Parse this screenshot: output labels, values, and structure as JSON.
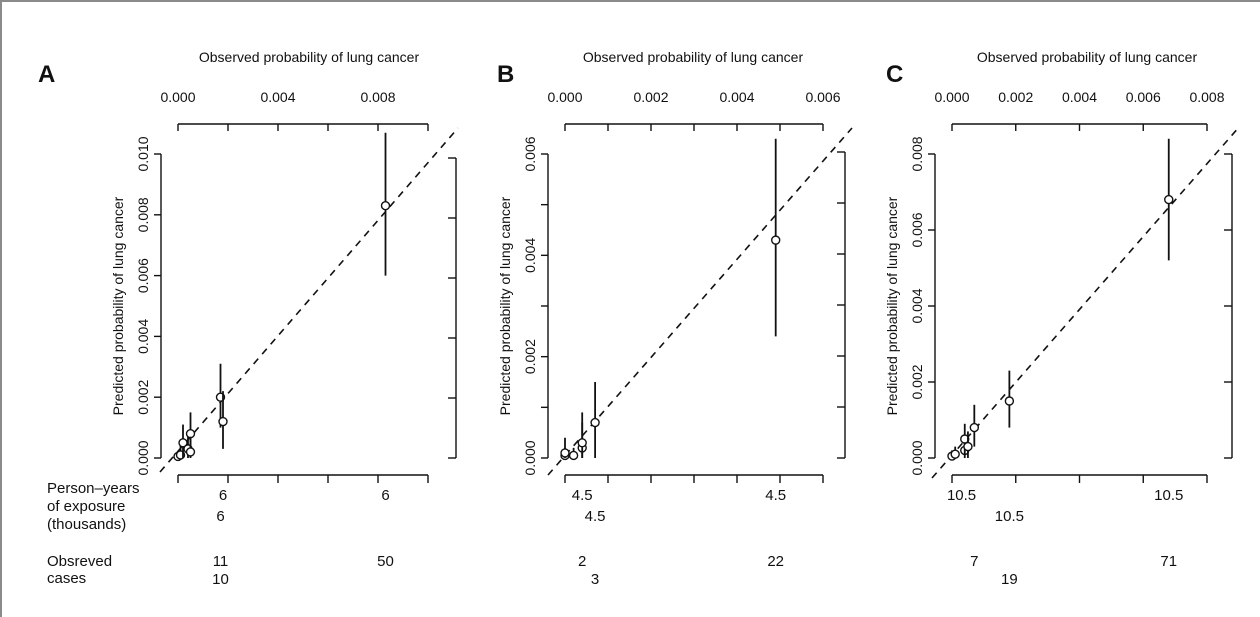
{
  "footer_labels": {
    "exposure": [
      "Person–years",
      "of exposure",
      "(thousands)"
    ],
    "cases": [
      "Obsreved",
      "cases"
    ]
  },
  "chart_data": [
    {
      "type": "scatter",
      "panel": "A",
      "xlabel": "Observed probability of lung cancer",
      "ylabel": "Predicted probability of lung cancer",
      "xlim": [
        0,
        0.01
      ],
      "ylim": [
        0,
        0.01
      ],
      "x_ticks": [
        0,
        0.002,
        0.004,
        0.006,
        0.008,
        0.01
      ],
      "x_tick_labels": [
        "0.000",
        "",
        "0.004",
        "",
        "0.008",
        ""
      ],
      "y_ticks": [
        0,
        0.002,
        0.004,
        0.006,
        0.008,
        0.01
      ],
      "y_tick_labels": [
        "0.000",
        "0.002",
        "0.004",
        "0.006",
        "0.008",
        "0.010"
      ],
      "reference_line": "y = x (dashed)",
      "points": [
        {
          "x": 0.0,
          "y": 5e-05,
          "lo": 0.0,
          "hi": 0.0002
        },
        {
          "x": 0.0001,
          "y": 0.0001,
          "lo": 0.0,
          "hi": 0.0004
        },
        {
          "x": 0.0002,
          "y": 0.0005,
          "lo": 0.0,
          "hi": 0.0011
        },
        {
          "x": 0.0004,
          "y": 0.0003,
          "lo": 0.0,
          "hi": 0.0008
        },
        {
          "x": 0.0005,
          "y": 0.0008,
          "lo": 0.0002,
          "hi": 0.0015
        },
        {
          "x": 0.0005,
          "y": 0.0002,
          "lo": 0.0,
          "hi": 0.0007
        },
        {
          "x": 0.0017,
          "y": 0.002,
          "lo": 0.001,
          "hi": 0.0031
        },
        {
          "x": 0.0018,
          "y": 0.0012,
          "lo": 0.0003,
          "hi": 0.0022
        },
        {
          "x": 0.0083,
          "y": 0.0083,
          "lo": 0.006,
          "hi": 0.0107
        }
      ],
      "exposure_labels": [
        {
          "text": "6",
          "x": 0.0018,
          "row": 1
        },
        {
          "text": "6",
          "x": 0.0083,
          "row": 1
        },
        {
          "text": "6",
          "x": 0.0017,
          "row": 2
        }
      ],
      "cases_labels": [
        {
          "text": "11",
          "x": 0.0017,
          "row": 1
        },
        {
          "text": "50",
          "x": 0.0083,
          "row": 1
        },
        {
          "text": "10",
          "x": 0.0017,
          "row": 2
        }
      ]
    },
    {
      "type": "scatter",
      "panel": "B",
      "xlabel": "Observed probability of lung cancer",
      "ylabel": "Predicted probability of lung cancer",
      "xlim": [
        0,
        0.006
      ],
      "ylim": [
        0,
        0.006
      ],
      "x_ticks": [
        0,
        0.001,
        0.002,
        0.003,
        0.004,
        0.005,
        0.006
      ],
      "x_tick_labels": [
        "0.000",
        "",
        "0.002",
        "",
        "0.004",
        "",
        "0.006"
      ],
      "y_ticks": [
        0,
        0.001,
        0.002,
        0.003,
        0.004,
        0.005,
        0.006
      ],
      "y_tick_labels": [
        "0.000",
        "",
        "0.002",
        "",
        "0.004",
        "",
        "0.006"
      ],
      "reference_line": "y = x (dashed)",
      "points": [
        {
          "x": 0.0,
          "y": 5e-05,
          "lo": 0.0,
          "hi": 0.0002
        },
        {
          "x": 0.0,
          "y": 0.0001,
          "lo": 0.0,
          "hi": 0.0004
        },
        {
          "x": 0.0002,
          "y": 5e-05,
          "lo": 0.0,
          "hi": 0.0002
        },
        {
          "x": 0.0004,
          "y": 0.0002,
          "lo": 0.0,
          "hi": 0.0007
        },
        {
          "x": 0.0004,
          "y": 0.0003,
          "lo": 0.0,
          "hi": 0.0009
        },
        {
          "x": 0.0007,
          "y": 0.0007,
          "lo": 0.0,
          "hi": 0.0015
        },
        {
          "x": 0.0049,
          "y": 0.0043,
          "lo": 0.0024,
          "hi": 0.0063
        }
      ],
      "exposure_labels": [
        {
          "text": "4.5",
          "x": 0.0004,
          "row": 1
        },
        {
          "text": "4.5",
          "x": 0.0049,
          "row": 1
        },
        {
          "text": "4.5",
          "x": 0.0007,
          "row": 2
        }
      ],
      "cases_labels": [
        {
          "text": "2",
          "x": 0.0004,
          "row": 1
        },
        {
          "text": "22",
          "x": 0.0049,
          "row": 1
        },
        {
          "text": "3",
          "x": 0.0007,
          "row": 2
        }
      ]
    },
    {
      "type": "scatter",
      "panel": "C",
      "xlabel": "Observed probability of lung cancer",
      "ylabel": "Predicted probability of lung cancer",
      "xlim": [
        0,
        0.008
      ],
      "ylim": [
        0,
        0.008
      ],
      "x_ticks": [
        0,
        0.002,
        0.004,
        0.006,
        0.008
      ],
      "x_tick_labels": [
        "0.000",
        "0.002",
        "0.004",
        "0.006",
        "0.008"
      ],
      "y_ticks": [
        0,
        0.002,
        0.004,
        0.006,
        0.008
      ],
      "y_tick_labels": [
        "0.000",
        "0.002",
        "0.004",
        "0.006",
        "0.008"
      ],
      "reference_line": "y = x (dashed)",
      "points": [
        {
          "x": 0.0,
          "y": 5e-05,
          "lo": 0.0,
          "hi": 0.0002
        },
        {
          "x": 0.0001,
          "y": 0.0001,
          "lo": 0.0,
          "hi": 0.0003
        },
        {
          "x": 0.0004,
          "y": 0.0002,
          "lo": 0.0,
          "hi": 0.0006
        },
        {
          "x": 0.0004,
          "y": 0.0005,
          "lo": 0.0001,
          "hi": 0.0009
        },
        {
          "x": 0.0005,
          "y": 0.0003,
          "lo": 0.0,
          "hi": 0.0007
        },
        {
          "x": 0.0007,
          "y": 0.0008,
          "lo": 0.0003,
          "hi": 0.0014
        },
        {
          "x": 0.0018,
          "y": 0.0015,
          "lo": 0.0008,
          "hi": 0.0023
        },
        {
          "x": 0.0068,
          "y": 0.0068,
          "lo": 0.0052,
          "hi": 0.0084
        }
      ],
      "exposure_labels": [
        {
          "text": "10.5",
          "x": 0.0003,
          "row": 1
        },
        {
          "text": "10.5",
          "x": 0.0068,
          "row": 1
        },
        {
          "text": "10.5",
          "x": 0.0018,
          "row": 2
        }
      ],
      "cases_labels": [
        {
          "text": "7",
          "x": 0.0007,
          "row": 1
        },
        {
          "text": "71",
          "x": 0.0068,
          "row": 1
        },
        {
          "text": "19",
          "x": 0.0018,
          "row": 2
        }
      ]
    }
  ]
}
